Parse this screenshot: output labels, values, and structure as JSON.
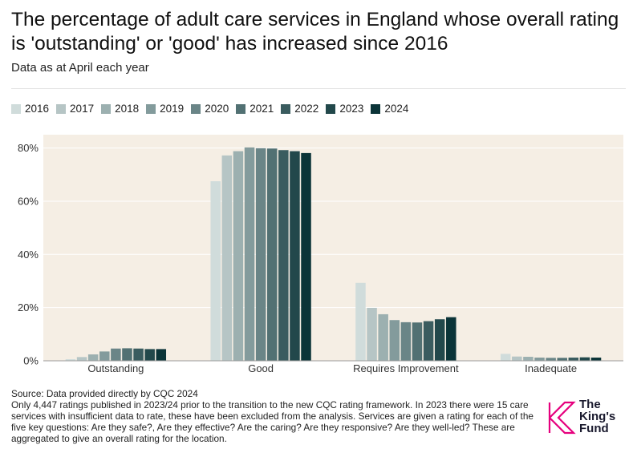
{
  "title": "The percentage of adult care services in England whose overall rating is 'outstanding' or 'good' has increased since 2016",
  "subtitle": "Data as at April each year",
  "footer": {
    "source": "Source: Data provided directly by CQC 2024",
    "note": "Only 4,447 ratings published in 2023/24 prior to the transition to the new CQC rating framework. In 2023 there were 15 care services with insufficient data to rate, these have been excluded from the analysis. Services are given a rating for each of the five key questions: Are they safe?, Are they effective? Are the caring? Are they responsive? Are they well-led? These are aggregated to give an overall rating for the location."
  },
  "logo": {
    "line1": "The",
    "line2": "King's",
    "line3": "Fund",
    "color": "#e6007e"
  },
  "colors": {
    "background": "#f5eee4",
    "series": [
      "#d0dcdb",
      "#b6c5c5",
      "#9cb0b0",
      "#839b9c",
      "#6a8587",
      "#527173",
      "#3a5c5f",
      "#22484b",
      "#0b3438"
    ]
  },
  "chart_data": {
    "type": "bar",
    "title": "The percentage of adult care services in England whose overall rating is 'outstanding' or 'good' has increased since 2016",
    "xlabel": "",
    "ylabel": "",
    "ylim": [
      0,
      85
    ],
    "yticks": [
      0,
      20,
      40,
      60,
      80
    ],
    "ytick_labels": [
      "0%",
      "20%",
      "40%",
      "60%",
      "80%"
    ],
    "categories": [
      "Outstanding",
      "Good",
      "Requires Improvement",
      "Inadequate"
    ],
    "series": [
      {
        "name": "2016",
        "values": [
          0.6,
          67.5,
          29.3,
          2.6
        ]
      },
      {
        "name": "2017",
        "values": [
          1.4,
          77.2,
          19.9,
          1.6
        ]
      },
      {
        "name": "2018",
        "values": [
          2.4,
          78.8,
          17.5,
          1.5
        ]
      },
      {
        "name": "2019",
        "values": [
          3.5,
          80.2,
          15.3,
          1.2
        ]
      },
      {
        "name": "2020",
        "values": [
          4.6,
          79.9,
          14.5,
          1.1
        ]
      },
      {
        "name": "2021",
        "values": [
          4.7,
          79.8,
          14.4,
          1.1
        ]
      },
      {
        "name": "2022",
        "values": [
          4.6,
          79.2,
          14.9,
          1.2
        ]
      },
      {
        "name": "2023",
        "values": [
          4.4,
          78.8,
          15.6,
          1.3
        ]
      },
      {
        "name": "2024",
        "values": [
          4.4,
          78.1,
          16.4,
          1.2
        ]
      }
    ]
  }
}
